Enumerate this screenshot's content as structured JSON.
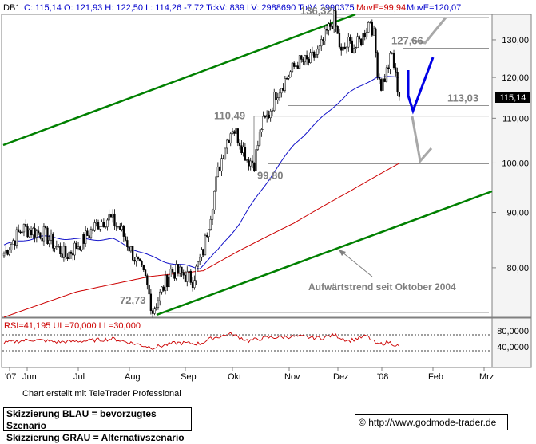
{
  "header": {
    "symbol": "DB1",
    "stats": "C: 115,14  O: 121,93  H: 122,50  L: 114,26  -7,72  TckV: 839  LV: 2988690  TotV: 2990375",
    "mov1": "MovE=99,94",
    "mov2": "MovE=120,07"
  },
  "colors": {
    "price": "#000000",
    "ma_fast": "#1010c8",
    "ma_slow": "#cc0000",
    "trend": "#008000",
    "scenario_blue": "#0000e6",
    "scenario_gray": "#a8a8a8",
    "rsi": "#cc0000"
  },
  "chart_data": {
    "type": "line",
    "subtype": "candlestick",
    "y_axis": {
      "scale": "log",
      "range": [
        71,
        140
      ],
      "ticks": [
        "130,00",
        "120,00",
        "110,00",
        "100,00",
        "90,00",
        "80,00"
      ],
      "position": "right"
    },
    "x_axis": {
      "labels": [
        "'07",
        "Jun",
        "Jul",
        "Aug",
        "Sep",
        "Okt",
        "Nov",
        "Dez",
        "'08",
        "Feb",
        "Mrz"
      ]
    },
    "last_price_label": "115,14",
    "series": [
      {
        "name": "MovE=99,94",
        "color": "#cc0000"
      },
      {
        "name": "MovE=120,07",
        "color": "#1010c8"
      }
    ],
    "anchors": [
      {
        "x": 0,
        "y": 82.5
      },
      {
        "x": 10,
        "y": 87
      },
      {
        "x": 22,
        "y": 86
      },
      {
        "x": 34,
        "y": 82
      },
      {
        "x": 44,
        "y": 85
      },
      {
        "x": 52,
        "y": 88
      },
      {
        "x": 58,
        "y": 89
      },
      {
        "x": 64,
        "y": 87
      },
      {
        "x": 70,
        "y": 83
      },
      {
        "x": 78,
        "y": 78
      },
      {
        "x": 82,
        "y": 73
      },
      {
        "x": 86,
        "y": 75.5
      },
      {
        "x": 92,
        "y": 79.5
      },
      {
        "x": 98,
        "y": 79
      },
      {
        "x": 104,
        "y": 78
      },
      {
        "x": 110,
        "y": 83
      },
      {
        "x": 114,
        "y": 90
      },
      {
        "x": 118,
        "y": 98
      },
      {
        "x": 122,
        "y": 104
      },
      {
        "x": 126,
        "y": 108
      },
      {
        "x": 130,
        "y": 105
      },
      {
        "x": 134,
        "y": 101
      },
      {
        "x": 138,
        "y": 100
      },
      {
        "x": 142,
        "y": 108
      },
      {
        "x": 146,
        "y": 111
      },
      {
        "x": 150,
        "y": 116
      },
      {
        "x": 156,
        "y": 120
      },
      {
        "x": 162,
        "y": 124
      },
      {
        "x": 168,
        "y": 124
      },
      {
        "x": 174,
        "y": 127
      },
      {
        "x": 178,
        "y": 132
      },
      {
        "x": 182,
        "y": 136
      },
      {
        "x": 186,
        "y": 126
      },
      {
        "x": 190,
        "y": 129
      },
      {
        "x": 194,
        "y": 128
      },
      {
        "x": 198,
        "y": 131
      },
      {
        "x": 202,
        "y": 136
      },
      {
        "x": 204,
        "y": 131
      },
      {
        "x": 206,
        "y": 122
      },
      {
        "x": 208,
        "y": 118
      },
      {
        "x": 210,
        "y": 120
      },
      {
        "x": 212,
        "y": 123
      },
      {
        "x": 214,
        "y": 126
      },
      {
        "x": 216,
        "y": 120
      },
      {
        "x": 218,
        "y": 115.14
      }
    ],
    "ma_slow_anchors": [
      {
        "x": 0,
        "y": 72
      },
      {
        "x": 40,
        "y": 76
      },
      {
        "x": 80,
        "y": 78.5
      },
      {
        "x": 110,
        "y": 79.5
      },
      {
        "x": 130,
        "y": 83
      },
      {
        "x": 160,
        "y": 88
      },
      {
        "x": 190,
        "y": 94
      },
      {
        "x": 218,
        "y": 99.94
      }
    ],
    "ma_fast_anchors": [
      {
        "x": 0,
        "y": 84
      },
      {
        "x": 20,
        "y": 85.5
      },
      {
        "x": 40,
        "y": 85
      },
      {
        "x": 60,
        "y": 85
      },
      {
        "x": 80,
        "y": 82
      },
      {
        "x": 95,
        "y": 80.5
      },
      {
        "x": 108,
        "y": 80
      },
      {
        "x": 118,
        "y": 83
      },
      {
        "x": 130,
        "y": 88
      },
      {
        "x": 145,
        "y": 96
      },
      {
        "x": 160,
        "y": 104
      },
      {
        "x": 175,
        "y": 110
      },
      {
        "x": 190,
        "y": 116
      },
      {
        "x": 205,
        "y": 120
      },
      {
        "x": 218,
        "y": 120.07
      }
    ],
    "levels": [
      {
        "label": "136,32",
        "y": 136.32
      },
      {
        "label": "127,66",
        "y": 127.66
      },
      {
        "label": "113,03",
        "y": 113.03
      },
      {
        "label": "110,49",
        "y": 110.49
      },
      {
        "label": "99,80",
        "y": 99.8
      },
      {
        "label": "72,73",
        "y": 72.73
      }
    ],
    "trend_label": "Aufwärtstrend seit Oktober 2004",
    "rsi": {
      "header": "RSI=41,195 UL=70,000 LL=30,000",
      "ticks": [
        "80,0000",
        "40,0000"
      ],
      "upper": 70,
      "lower": 30,
      "anchors": [
        {
          "x": 0,
          "y": 50
        },
        {
          "x": 15,
          "y": 58
        },
        {
          "x": 30,
          "y": 52
        },
        {
          "x": 45,
          "y": 55
        },
        {
          "x": 60,
          "y": 60
        },
        {
          "x": 75,
          "y": 45
        },
        {
          "x": 82,
          "y": 38
        },
        {
          "x": 95,
          "y": 50
        },
        {
          "x": 108,
          "y": 48
        },
        {
          "x": 115,
          "y": 62
        },
        {
          "x": 125,
          "y": 72
        },
        {
          "x": 135,
          "y": 55
        },
        {
          "x": 145,
          "y": 63
        },
        {
          "x": 160,
          "y": 66
        },
        {
          "x": 175,
          "y": 62
        },
        {
          "x": 182,
          "y": 70
        },
        {
          "x": 190,
          "y": 55
        },
        {
          "x": 200,
          "y": 67
        },
        {
          "x": 206,
          "y": 45
        },
        {
          "x": 212,
          "y": 52
        },
        {
          "x": 218,
          "y": 41.195
        }
      ]
    }
  },
  "footer": {
    "credit": "Chart erstellt mit TeleTrader Professional",
    "scenario_blue": "Skizzierung BLAU = bevorzugtes Szenario",
    "scenario_gray": "Skizzierung GRAU = Alternativszenario",
    "url": "http://www.godmode-trader.de"
  }
}
